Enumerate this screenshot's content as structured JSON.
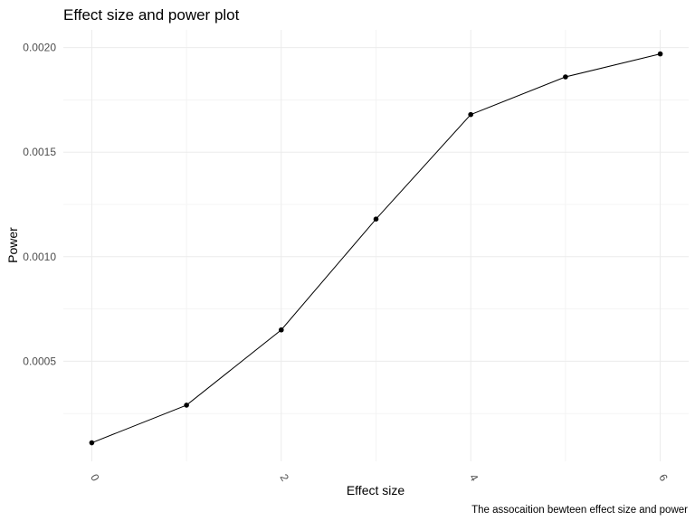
{
  "chart_data": {
    "type": "line",
    "title": "Effect size and power plot",
    "xlabel": "Effect size",
    "ylabel": "Power",
    "caption": "The assocaition bewteen effect size and power",
    "x": [
      0,
      1,
      2,
      3,
      4,
      5,
      6
    ],
    "series": [
      {
        "values": [
          0.00011,
          0.00029,
          0.00065,
          0.00118,
          0.00168,
          0.00186,
          0.00197
        ]
      }
    ],
    "xticks": [
      0,
      2,
      4,
      6
    ],
    "xtick_labels": [
      "0",
      "2",
      "4",
      "6"
    ],
    "yticks": [
      0.0005,
      0.001,
      0.0015,
      0.002
    ],
    "ytick_labels": [
      "0.0005",
      "0.0010",
      "0.0015",
      "0.0020"
    ],
    "xlim": [
      -0.3,
      6.3
    ],
    "ylim": [
      2.15e-05,
      0.002085
    ],
    "grid": true,
    "colors": {
      "line": "#000000",
      "grid": "#ebebeb",
      "text": "#4d4d4d"
    }
  }
}
